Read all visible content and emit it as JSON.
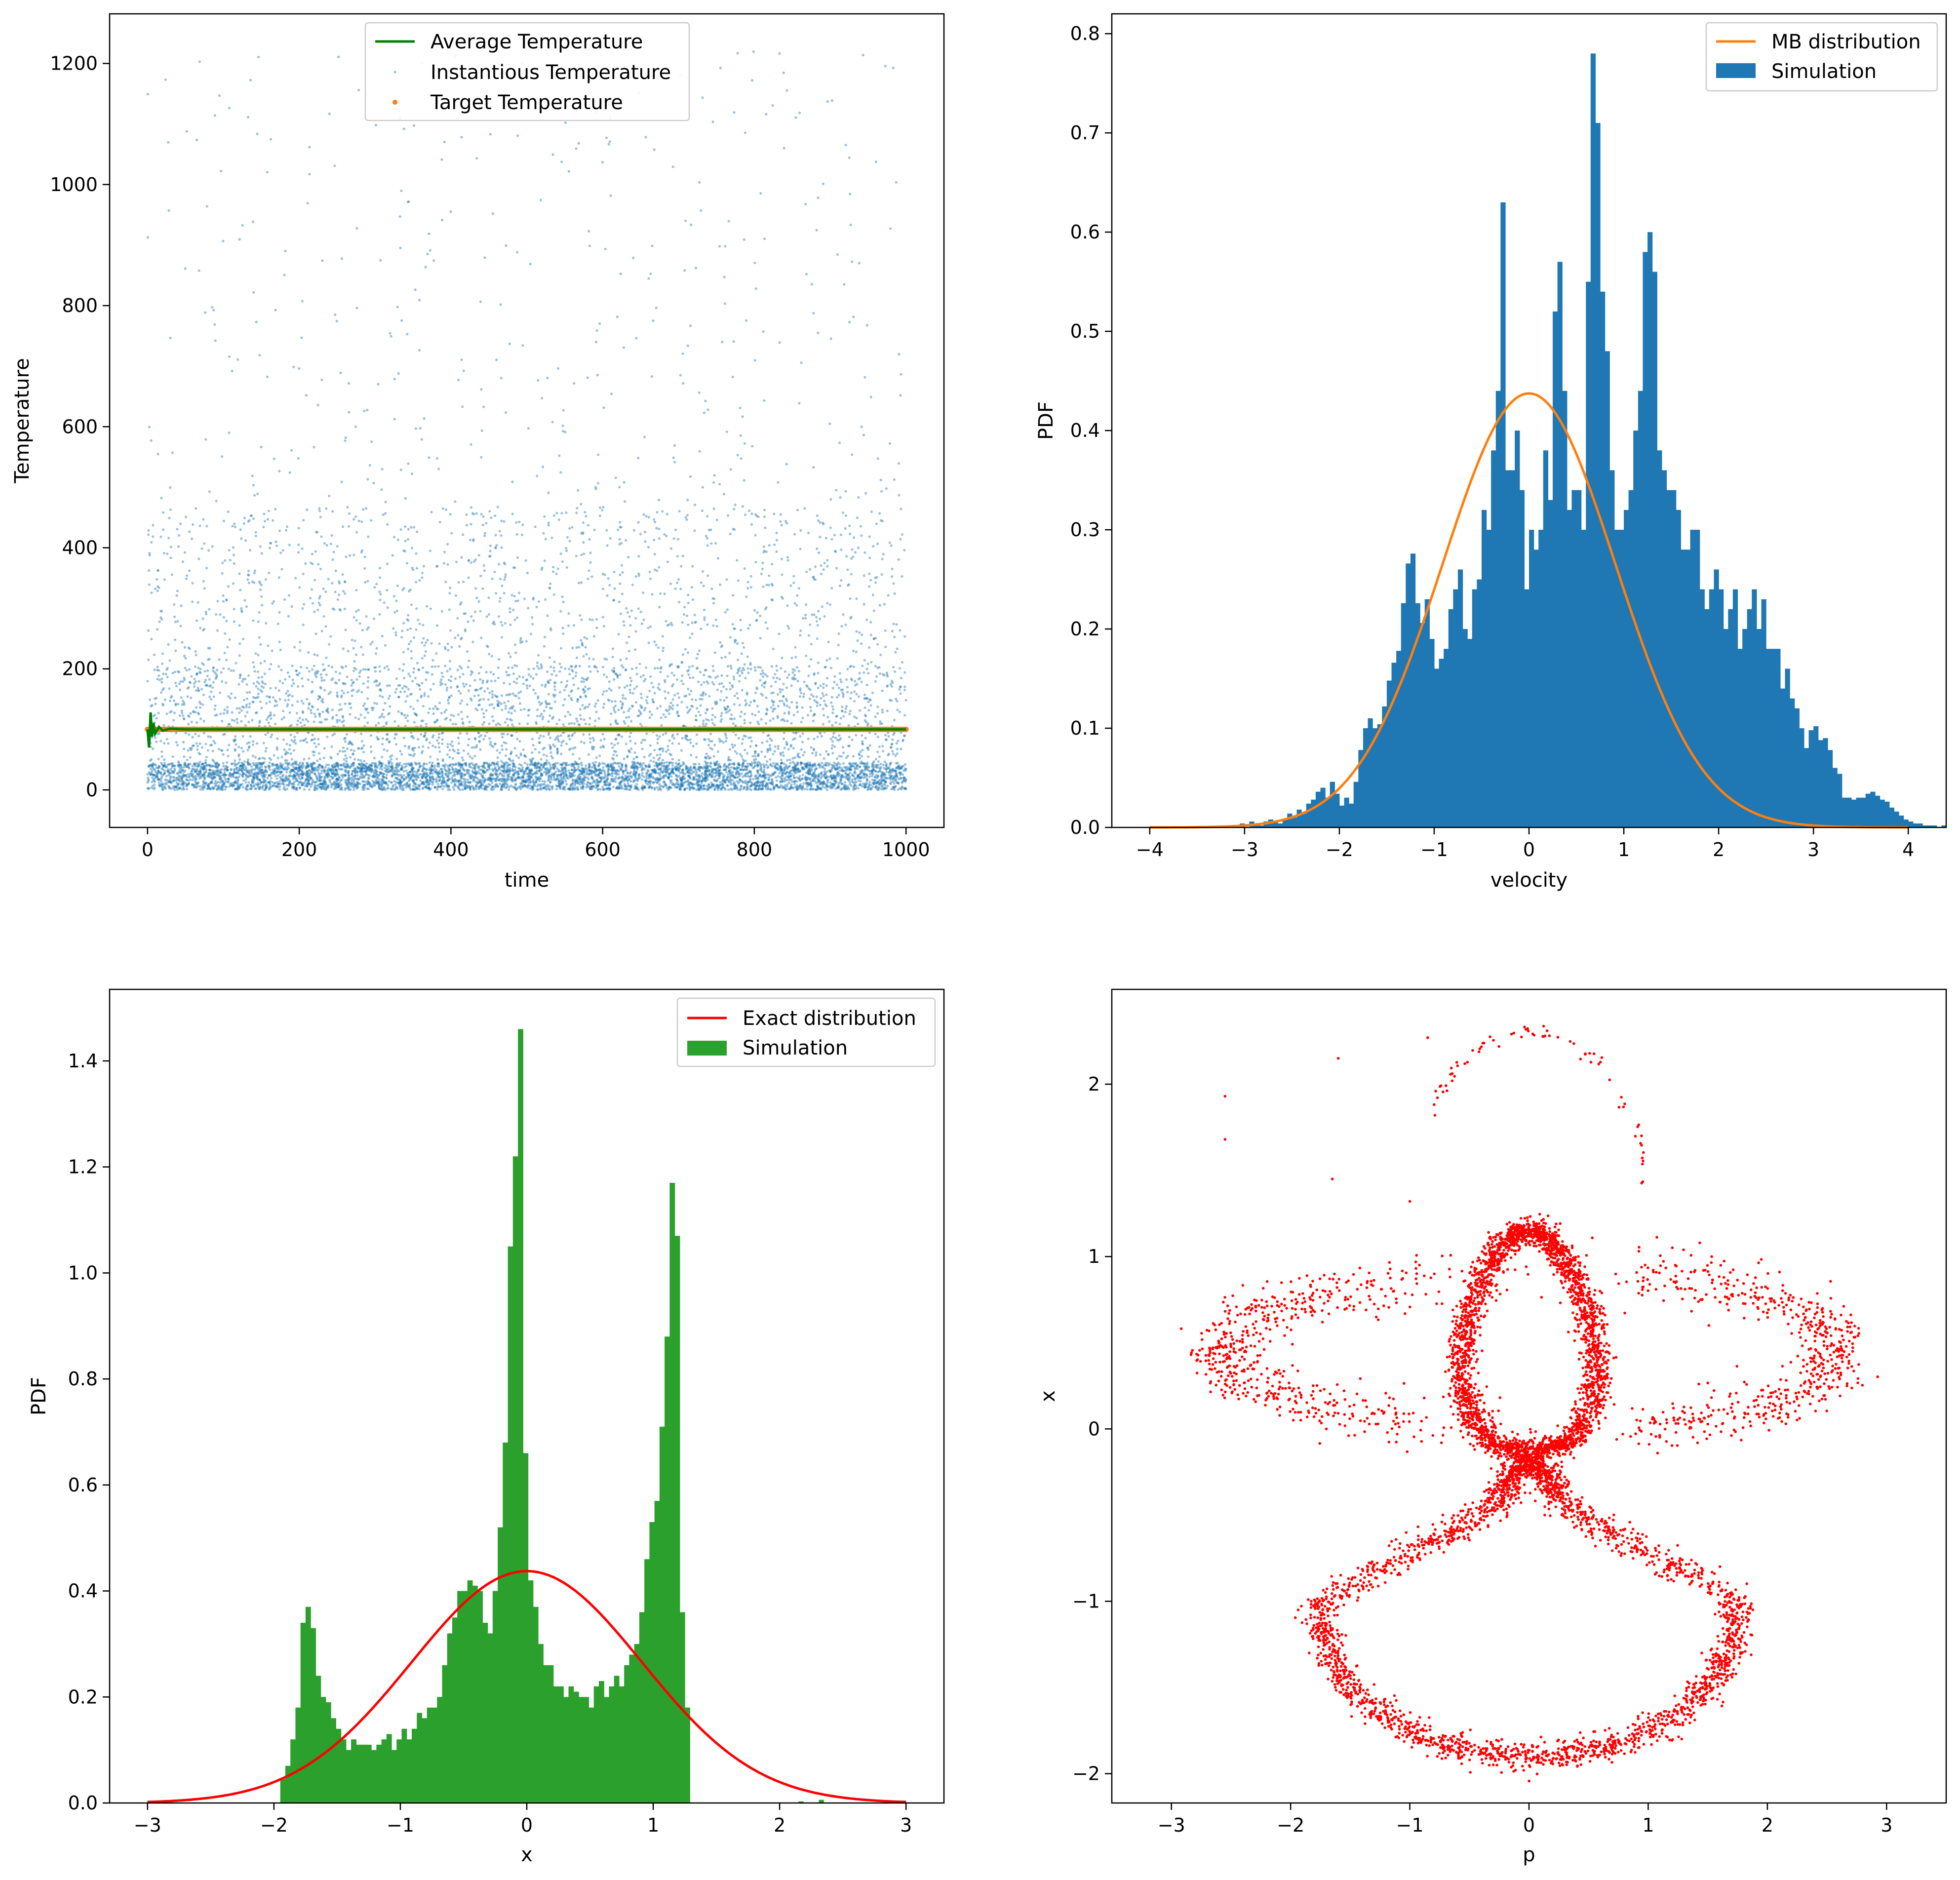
{
  "chart_data": [
    {
      "id": "temp",
      "type": "scatter",
      "xlabel": "time",
      "ylabel": "Temperature",
      "xlim": [
        -50,
        1050
      ],
      "ylim": [
        -62,
        1282
      ],
      "xticks": [
        0,
        200,
        400,
        600,
        800,
        1000
      ],
      "yticks": [
        0,
        200,
        400,
        600,
        800,
        1000,
        1200
      ],
      "legend_position": "upper center",
      "series": [
        {
          "name": "Average Temperature",
          "kind": "line",
          "color": "#008000",
          "x": [
            0,
            2,
            4,
            6,
            8,
            10,
            15,
            20,
            30,
            50,
            100,
            1000
          ],
          "y": [
            100,
            70,
            128,
            88,
            110,
            93,
            104,
            98,
            101,
            100,
            100,
            100
          ]
        },
        {
          "name": "Instantious Temperature",
          "kind": "scatter",
          "color": "#1f77b4",
          "x_range": [
            0,
            1000
          ],
          "y_range": [
            0,
            1220
          ],
          "note_distribution": "dense near 0-100, sparse up to ~1200"
        },
        {
          "name": "Target Temperature",
          "kind": "scatter",
          "color": "#ff7f0e",
          "x_range": [
            0,
            1000
          ],
          "y": 100
        }
      ]
    },
    {
      "id": "vel",
      "type": "bar",
      "xlabel": "velocity",
      "ylabel": "PDF",
      "xlim": [
        -4.4,
        4.4
      ],
      "ylim": [
        0,
        0.82
      ],
      "xticks": [
        -4,
        -3,
        -2,
        -1,
        0,
        1,
        2,
        3,
        4
      ],
      "yticks": [
        0.0,
        0.1,
        0.2,
        0.3,
        0.4,
        0.5,
        0.6,
        0.7,
        0.8
      ],
      "legend_position": "upper right",
      "series": [
        {
          "name": "MB distribution",
          "kind": "line",
          "color": "#ff7f0e",
          "function": "gaussian",
          "sigma": 0.912,
          "x_range": [
            -4,
            4
          ]
        },
        {
          "name": "Simulation",
          "kind": "hist",
          "color": "#1f77b4",
          "bin_start": -3.05,
          "bin_width": 0.05,
          "values": [
            0.004,
            0,
            0.006,
            0.004,
            0.002,
            0.006,
            0.008,
            0.006,
            0.004,
            0.008,
            0.014,
            0.01,
            0.018,
            0.014,
            0.024,
            0.028,
            0.036,
            0.04,
            0.03,
            0.046,
            0.034,
            0.022,
            0.03,
            0.024,
            0.046,
            0.078,
            0.1,
            0.11,
            0.1,
            0.104,
            0.122,
            0.148,
            0.166,
            0.178,
            0.226,
            0.266,
            0.276,
            0.226,
            0.206,
            0.23,
            0.19,
            0.16,
            0.17,
            0.18,
            0.22,
            0.24,
            0.26,
            0.2,
            0.19,
            0.24,
            0.25,
            0.32,
            0.3,
            0.38,
            0.44,
            0.63,
            0.36,
            0.36,
            0.4,
            0.34,
            0.24,
            0.3,
            0.28,
            0.3,
            0.38,
            0.33,
            0.52,
            0.57,
            0.44,
            0.32,
            0.34,
            0.34,
            0.3,
            0.55,
            0.78,
            0.71,
            0.54,
            0.48,
            0.36,
            0.3,
            0.3,
            0.32,
            0.34,
            0.4,
            0.44,
            0.58,
            0.6,
            0.56,
            0.38,
            0.36,
            0.34,
            0.34,
            0.32,
            0.28,
            0.28,
            0.3,
            0.3,
            0.24,
            0.22,
            0.24,
            0.26,
            0.24,
            0.2,
            0.22,
            0.24,
            0.18,
            0.2,
            0.22,
            0.24,
            0.2,
            0.23,
            0.18,
            0.18,
            0.18,
            0.14,
            0.16,
            0.13,
            0.12,
            0.1,
            0.08,
            0.098,
            0.102,
            0.088,
            0.09,
            0.078,
            0.06,
            0.054,
            0.03,
            0.03,
            0.028,
            0.03,
            0.03,
            0.034,
            0.036,
            0.032,
            0.028,
            0.026,
            0.02,
            0.016,
            0.012,
            0.008,
            0.006,
            0.004,
            0.004,
            0.002,
            0.002,
            0.002,
            0,
            0.002,
            0
          ]
        }
      ]
    },
    {
      "id": "pos",
      "type": "bar",
      "xlabel": "x",
      "ylabel": "PDF",
      "xlim": [
        -3.3,
        3.3
      ],
      "ylim": [
        0,
        1.535
      ],
      "xticks": [
        -3,
        -2,
        -1,
        0,
        1,
        2,
        3
      ],
      "yticks": [
        0.0,
        0.2,
        0.4,
        0.6,
        0.8,
        1.0,
        1.2,
        1.4
      ],
      "legend_position": "upper right",
      "series": [
        {
          "name": "Exact distribution",
          "kind": "line",
          "color": "#ff0000",
          "function": "gaussian",
          "sigma": 0.912,
          "x_range": [
            -3,
            3
          ]
        },
        {
          "name": "Simulation",
          "kind": "hist",
          "color": "#2ca02c",
          "bin_start": -1.95,
          "bin_width": 0.04,
          "values": [
            0.045,
            0.07,
            0.12,
            0.18,
            0.34,
            0.37,
            0.33,
            0.24,
            0.2,
            0.19,
            0.16,
            0.14,
            0.12,
            0.1,
            0.12,
            0.11,
            0.11,
            0.11,
            0.1,
            0.11,
            0.12,
            0.13,
            0.1,
            0.12,
            0.14,
            0.12,
            0.14,
            0.17,
            0.16,
            0.18,
            0.18,
            0.2,
            0.26,
            0.32,
            0.35,
            0.4,
            0.4,
            0.42,
            0.41,
            0.4,
            0.34,
            0.32,
            0.4,
            0.52,
            0.68,
            1.05,
            1.22,
            1.46,
            0.66,
            0.42,
            0.37,
            0.3,
            0.26,
            0.26,
            0.22,
            0.22,
            0.2,
            0.22,
            0.21,
            0.2,
            0.2,
            0.18,
            0.22,
            0.23,
            0.2,
            0.22,
            0.24,
            0.22,
            0.26,
            0.28,
            0.3,
            0.36,
            0.46,
            0.53,
            0.57,
            0.71,
            0.88,
            1.17,
            1.07,
            0.36,
            0.18
          ],
          "stray_bins": [
            {
              "x": 2.31,
              "value": 0.006
            },
            {
              "x": 2.15,
              "value": 0.003
            }
          ]
        }
      ]
    },
    {
      "id": "phase",
      "type": "scatter",
      "xlabel": "p",
      "ylabel": "x",
      "xlim": [
        -3.5,
        3.5
      ],
      "ylim": [
        -2.17,
        2.55
      ],
      "xticks": [
        -3,
        -2,
        -1,
        0,
        1,
        2,
        3
      ],
      "yticks": [
        -2,
        -1,
        0,
        1,
        2
      ],
      "series": [
        {
          "name": "",
          "kind": "scatter",
          "color": "#ff0000",
          "p_range": [
            -3.2,
            3.2
          ],
          "x_range": [
            -1.95,
            2.35
          ],
          "shape": "phase-space trajectory of particle in double-well potential"
        }
      ]
    }
  ]
}
